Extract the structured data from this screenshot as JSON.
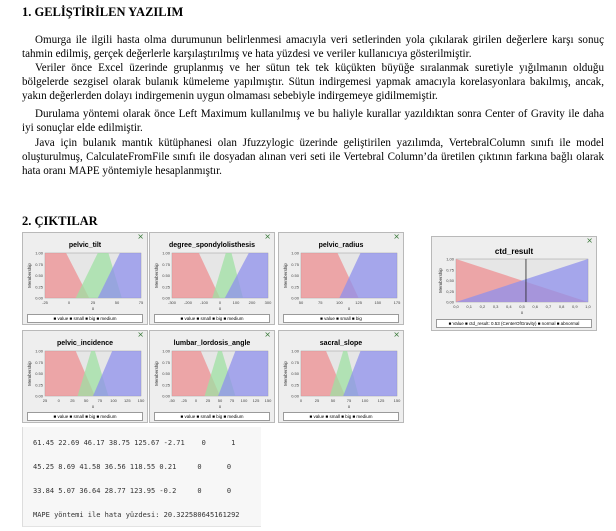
{
  "section1_title": "1. GELİŞTİRİLEN YAZILIM",
  "paragraphs": [
    "Omurga ile ilgili hasta olma durumunun belirlenmesi amacıyla veri setlerinden yola çıkılarak girilen değerlere karşı sonuç tahmin edilmiş, gerçek değerlerle karşılaştırılmış ve hata yüzdesi ve veriler kullanıcıya gösterilmiştir.",
    "Veriler önce Excel üzerinde gruplanmış ve her sütun tek tek küçükten büyüğe sıralanmak suretiyle yığılmanın olduğu bölgelerde sezgisel olarak bulanık kümeleme yapılmıştır. Sütun indirgemesi yapmak amacıyla korelasyonlara bakılmış, ancak, yakın değerlerden dolayı indirgemenin uygun olmaması sebebiyle indirgemeye gidilmemiştir.",
    "Durulama yöntemi olarak önce Left Maximum kullanılmış ve bu haliyle kurallar yazıldıktan sonra Center of Gravity ile daha iyi sonuçlar elde edilmiştir.",
    "Java için bulanık mantık kütüphanesi olan Jfuzzylogic üzerinde geliştirilen yazılımda, VertebralColumn sınıfı ile model oluşturulmuş, CalculateFromFile sınıfı ile dosyadan alınan veri seti ile Vertebral Column’da üretilen çıktının farkına bağlı olarak hata oranı MAPE yöntemiyle hesaplanmıştır."
  ],
  "section2_title": "2. ÇIKTILAR",
  "chart_data": [
    {
      "type": "line",
      "title": "pelvic_tilt",
      "xlabel": "x",
      "ylabel": "Membership",
      "x_ticks": [
        "-25",
        "0",
        "25",
        "50",
        "75"
      ],
      "y_ticks": [
        "0.00",
        "0.25",
        "0.50",
        "0.75",
        "1.00"
      ],
      "ylim": [
        0,
        1
      ],
      "legend": "■ value ■ small ■ big ■ medium",
      "series": [
        {
          "name": "small",
          "color": "#ee8f92"
        },
        {
          "name": "big",
          "color": "#8f90ec"
        },
        {
          "name": "medium",
          "color": "#9fe0a3"
        }
      ]
    },
    {
      "type": "line",
      "title": "degree_spondylolisthesis",
      "xlabel": "x",
      "ylabel": "Membership",
      "x_ticks": [
        "-300",
        "-200",
        "-100",
        "0",
        "100",
        "200",
        "300"
      ],
      "y_ticks": [
        "0.00",
        "0.25",
        "0.50",
        "0.75",
        "1.00"
      ],
      "ylim": [
        0,
        1
      ],
      "legend": "■ value ■ small ■ big ■ medium",
      "series": [
        {
          "name": "small",
          "color": "#ee8f92"
        },
        {
          "name": "big",
          "color": "#8f90ec"
        },
        {
          "name": "medium",
          "color": "#9fe0a3"
        }
      ]
    },
    {
      "type": "line",
      "title": "pelvic_radius",
      "xlabel": "x",
      "ylabel": "Membership",
      "x_ticks": [
        "50",
        "75",
        "100",
        "125",
        "150",
        "175"
      ],
      "y_ticks": [
        "0.00",
        "0.25",
        "0.50",
        "0.75",
        "1.00"
      ],
      "ylim": [
        0,
        1
      ],
      "legend": "■ value ■ small ■ big",
      "series": [
        {
          "name": "small",
          "color": "#ee8f92"
        },
        {
          "name": "big",
          "color": "#8f90ec"
        }
      ]
    },
    {
      "type": "line",
      "title": "ctd_result",
      "xlabel": "x",
      "ylabel": "Membership",
      "x_ticks": [
        "0,0",
        "0,1",
        "0,2",
        "0,3",
        "0,4",
        "0,5",
        "0,6",
        "0,7",
        "0,8",
        "0,9",
        "1,0"
      ],
      "y_ticks": [
        "0,00",
        "0,25",
        "0,50",
        "0,75",
        "1,00"
      ],
      "ylim": [
        0,
        1
      ],
      "legend": "■ Value ■ ctd_result: 0.53 (CenterOfGravity) ■ normal ■ abnormal",
      "series": [
        {
          "name": "normal",
          "color": "#ee8f92"
        },
        {
          "name": "abnormal",
          "color": "#8f90ec"
        }
      ]
    },
    {
      "type": "line",
      "title": "pelvic_incidence",
      "xlabel": "x",
      "ylabel": "Membership",
      "x_ticks": [
        "25",
        "0",
        "25",
        "50",
        "75",
        "100",
        "125",
        "150"
      ],
      "y_ticks": [
        "0.00",
        "0.25",
        "0.50",
        "0.75",
        "1.00"
      ],
      "ylim": [
        0,
        1
      ],
      "legend": "■ value ■ small ■ big ■ medium",
      "series": [
        {
          "name": "small",
          "color": "#ee8f92"
        },
        {
          "name": "big",
          "color": "#8f90ec"
        },
        {
          "name": "medium",
          "color": "#9fe0a3"
        }
      ]
    },
    {
      "type": "line",
      "title": "lumbar_lordosis_angle",
      "xlabel": "x",
      "ylabel": "Membership",
      "x_ticks": [
        "-50",
        "-25",
        "0",
        "25",
        "50",
        "75",
        "100",
        "125",
        "150"
      ],
      "y_ticks": [
        "0.00",
        "0.25",
        "0.50",
        "0.75",
        "1.00"
      ],
      "ylim": [
        0,
        1
      ],
      "legend": "■ value ■ small ■ big ■ medium",
      "series": [
        {
          "name": "small",
          "color": "#ee8f92"
        },
        {
          "name": "big",
          "color": "#8f90ec"
        },
        {
          "name": "medium",
          "color": "#9fe0a3"
        }
      ]
    },
    {
      "type": "line",
      "title": "sacral_slope",
      "xlabel": "x",
      "ylabel": "Membership",
      "x_ticks": [
        "0",
        "25",
        "50",
        "75",
        "100",
        "125",
        "150"
      ],
      "y_ticks": [
        "0.00",
        "0.25",
        "0.50",
        "0.75",
        "1.00"
      ],
      "ylim": [
        0,
        1
      ],
      "legend": "■ value ■ small ■ big ■ medium",
      "series": [
        {
          "name": "small",
          "color": "#ee8f92"
        },
        {
          "name": "big",
          "color": "#8f90ec"
        },
        {
          "name": "medium",
          "color": "#9fe0a3"
        }
      ]
    }
  ],
  "console": {
    "lines": [
      "61.45 22.69 46.17 38.75 125.67 -2.71    0      1",
      "45.25 8.69 41.58 36.56 118.55 0.21     0      0",
      "33.84 5.07 36.64 28.77 123.95 -0.2     0      0",
      "MAPE yöntemi ile hata yüzdesi: 20.322580645161292"
    ]
  },
  "close_glyph": "×"
}
